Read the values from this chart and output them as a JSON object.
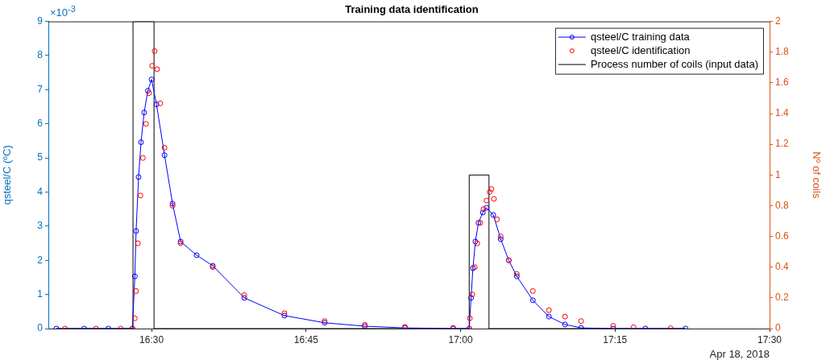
{
  "chart_data": {
    "type": "line",
    "title": "Training data identification",
    "ylabel": "qsteel/C (ºC)",
    "y2label": "Nº of coils",
    "xlim": [
      16.333,
      17.5
    ],
    "xticks": [
      {
        "value": 16.5,
        "label": "16:30"
      },
      {
        "value": 16.75,
        "label": "16:45"
      },
      {
        "value": 17,
        "label": "17:00"
      },
      {
        "value": 17.25,
        "label": "17:15"
      },
      {
        "value": 17.5,
        "label": "17:30"
      }
    ],
    "ylim": [
      0,
      9
    ],
    "yticks": [
      0,
      1,
      2,
      3,
      4,
      5,
      6,
      7,
      8,
      9
    ],
    "y2lim": [
      0,
      2
    ],
    "y2ticks": [
      0,
      0.2,
      0.4,
      0.6,
      0.8,
      1,
      1.2,
      1.4,
      1.6,
      1.8,
      2
    ],
    "grid": false,
    "legend": "top right",
    "annotations": [
      "×10$^{-3}$",
      "Apr 18, 2018"
    ],
    "series": [
      {
        "name": "qsteel/C training data",
        "type": "line",
        "marker": "circle",
        "color": "#0000ff",
        "x": [
          16.346,
          16.391,
          16.43,
          16.469,
          16.473,
          16.475,
          16.479,
          16.483,
          16.488,
          16.494,
          16.5,
          16.508,
          16.521,
          16.534,
          16.547,
          16.573,
          16.599,
          16.65,
          16.715,
          16.78,
          16.845,
          16.91,
          16.988,
          17.014,
          17.017,
          17.02,
          17.024,
          17.029,
          17.036,
          17.042,
          17.053,
          17.065,
          17.078,
          17.091,
          17.117,
          17.143,
          17.169,
          17.195,
          17.247,
          17.299,
          17.364
        ],
        "values": [
          0,
          0,
          0,
          0,
          1.53,
          2.86,
          4.44,
          5.46,
          6.33,
          6.97,
          7.3,
          6.57,
          5.08,
          3.66,
          2.55,
          2.15,
          1.84,
          0.9,
          0.38,
          0.17,
          0.07,
          0.02,
          0,
          0,
          0.9,
          1.77,
          2.55,
          3.1,
          3.4,
          3.54,
          3.33,
          2.62,
          2.0,
          1.53,
          0.83,
          0.35,
          0.12,
          0.02,
          0,
          0,
          0
        ]
      },
      {
        "name": "qsteel/C identification",
        "type": "scatter",
        "marker": "circle",
        "color": "#ff0000",
        "x": [
          16.36,
          16.41,
          16.45,
          16.469,
          16.473,
          16.475,
          16.478,
          16.482,
          16.486,
          16.491,
          16.496,
          16.501,
          16.505,
          16.509,
          16.514,
          16.521,
          16.534,
          16.547,
          16.599,
          16.65,
          16.715,
          16.78,
          16.845,
          16.91,
          16.988,
          17.014,
          17.015,
          17.019,
          17.023,
          17.027,
          17.032,
          17.037,
          17.042,
          17.047,
          17.05,
          17.054,
          17.059,
          17.065,
          17.078,
          17.091,
          17.117,
          17.143,
          17.169,
          17.195,
          17.247,
          17.28,
          17.34
        ],
        "values": [
          0,
          0,
          0,
          0,
          0.3,
          1.1,
          2.5,
          3.9,
          5.0,
          6.0,
          6.9,
          7.7,
          8.13,
          7.6,
          6.6,
          5.3,
          3.6,
          2.5,
          1.8,
          0.98,
          0.45,
          0.22,
          0.11,
          0.05,
          0.02,
          0,
          0.3,
          1.0,
          1.8,
          2.5,
          3.1,
          3.5,
          3.75,
          4.0,
          4.09,
          3.8,
          3.2,
          2.7,
          2.0,
          1.6,
          1.1,
          0.54,
          0.35,
          0.22,
          0.08,
          0.04,
          0.01
        ]
      },
      {
        "name": "Process number of coils (input data)",
        "type": "step",
        "axis": "y2",
        "marker": "none",
        "color": "#000000",
        "x": [
          16.346,
          16.47,
          16.504,
          17.014,
          17.046,
          17.364
        ],
        "values": [
          0,
          2,
          0,
          1,
          0,
          0
        ]
      }
    ]
  }
}
